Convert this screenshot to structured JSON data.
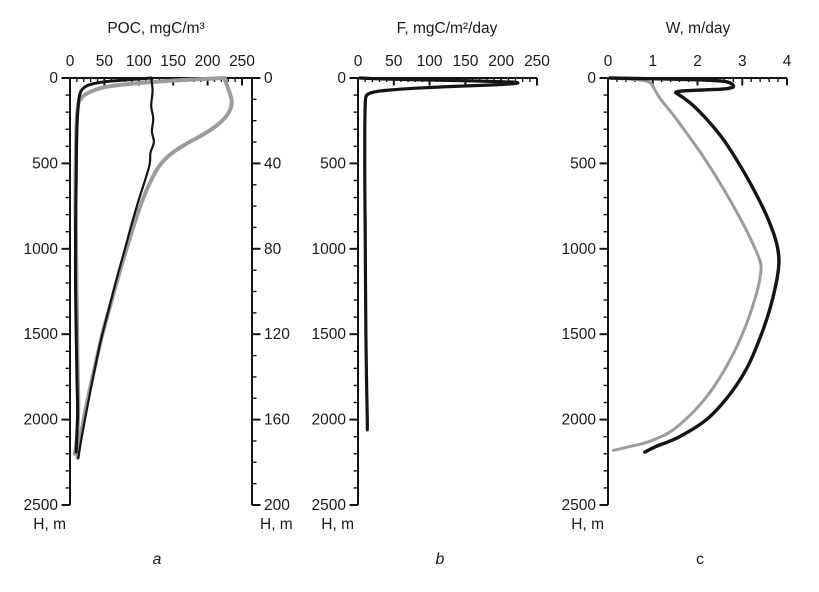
{
  "colors": {
    "line_black": "#141414",
    "line_gray": "#9c9c9c",
    "text": "#1a1a1a",
    "axis": "#141414"
  },
  "chart_data": [
    {
      "id": "a",
      "type": "line",
      "caption": "a",
      "title": "POC, mgC/m³",
      "x_axis": {
        "min": 0,
        "max": 250,
        "major_ticks": [
          0,
          50,
          100,
          150,
          200,
          250
        ],
        "minor_step": 10,
        "position": "top"
      },
      "y_axis": {
        "label": "H, m",
        "min": 0,
        "max": 2500,
        "major_ticks": [
          0,
          500,
          1000,
          1500,
          2000,
          2500
        ],
        "minor_step": 100,
        "position": "left",
        "direction": "down"
      },
      "y_axis_right": {
        "label": "H, m",
        "min": 0,
        "max": 200,
        "major_ticks": [
          0,
          40,
          80,
          120,
          160,
          200
        ],
        "minor_step": 10,
        "position": "right"
      },
      "series": [
        {
          "id": "poc-full-depth-gray",
          "name": "POC profile vs full depth scale 0-2500 m (gray)",
          "color": "line_gray",
          "width": 4,
          "scale": "left",
          "points": [
            [
              225,
              0
            ],
            [
              165,
              12
            ],
            [
              105,
              28
            ],
            [
              55,
              50
            ],
            [
              30,
              80
            ],
            [
              16,
              120
            ],
            [
              11,
              180
            ],
            [
              9,
              350
            ],
            [
              8,
              700
            ],
            [
              9,
              1050
            ],
            [
              10,
              1400
            ],
            [
              11,
              1700
            ],
            [
              12,
              1900
            ],
            [
              11,
              2050
            ],
            [
              9,
              2150
            ],
            [
              7,
              2200
            ]
          ]
        },
        {
          "id": "poc-upper-layer-gray",
          "name": "POC profile vs expanded upper-layer scale 0-200 m (gray)",
          "color": "line_gray",
          "width": 4,
          "scale": "right",
          "points": [
            [
              224,
              0
            ],
            [
              230,
              5
            ],
            [
              235,
              11
            ],
            [
              231,
              16
            ],
            [
              218,
              21
            ],
            [
              196,
              26
            ],
            [
              168,
              31
            ],
            [
              145,
              36
            ],
            [
              128,
              42
            ],
            [
              112,
              52
            ],
            [
              99,
              63
            ],
            [
              85,
              77
            ],
            [
              72,
              91
            ],
            [
              59,
              106
            ],
            [
              47,
              120
            ],
            [
              37,
              134
            ],
            [
              28,
              147
            ],
            [
              21,
              158
            ],
            [
              15,
              169
            ],
            [
              11,
              178
            ]
          ]
        },
        {
          "id": "poc-full-depth-black",
          "name": "POC profile vs full depth scale 0-2500 m (black)",
          "color": "line_black",
          "width": 3,
          "scale": "left",
          "points": [
            [
              118,
              0
            ],
            [
              85,
              10
            ],
            [
              50,
              22
            ],
            [
              28,
              40
            ],
            [
              18,
              65
            ],
            [
              14,
              100
            ],
            [
              12,
              160
            ],
            [
              10,
              300
            ],
            [
              9,
              600
            ],
            [
              8,
              900
            ],
            [
              8,
              1200
            ],
            [
              9,
              1500
            ],
            [
              10,
              1750
            ],
            [
              11,
              1950
            ],
            [
              10,
              2080
            ],
            [
              9,
              2190
            ]
          ]
        },
        {
          "id": "poc-upper-layer-black",
          "name": "POC profile vs expanded upper-layer scale 0-200 m (black)",
          "color": "line_black",
          "width": 2.2,
          "scale": "right",
          "points": [
            [
              118,
              0
            ],
            [
              120,
              6
            ],
            [
              118,
              13
            ],
            [
              121,
              19
            ],
            [
              119,
              25
            ],
            [
              122,
              30
            ],
            [
              117,
              35
            ],
            [
              116,
              40
            ],
            [
              110,
              47
            ],
            [
              100,
              57
            ],
            [
              90,
              68
            ],
            [
              79,
              81
            ],
            [
              67,
              95
            ],
            [
              55,
              110
            ],
            [
              44,
              124
            ],
            [
              35,
              138
            ],
            [
              27,
              151
            ],
            [
              20,
              163
            ],
            [
              15,
              172
            ],
            [
              12,
              178
            ]
          ]
        }
      ]
    },
    {
      "id": "b",
      "type": "line",
      "caption": "b",
      "title": "F, mgC/m²/day",
      "x_axis": {
        "min": 0,
        "max": 250,
        "major_ticks": [
          0,
          50,
          100,
          150,
          200,
          250
        ],
        "minor_step": 10,
        "position": "top"
      },
      "y_axis": {
        "label": "H, m",
        "min": 0,
        "max": 2500,
        "major_ticks": [
          0,
          500,
          1000,
          1500,
          2000,
          2500
        ],
        "minor_step": 100,
        "position": "left",
        "direction": "down"
      },
      "series": [
        {
          "id": "poc-flux-black",
          "name": "POC flux F",
          "color": "line_black",
          "width": 3.2,
          "scale": "left",
          "points": [
            [
              3,
              0
            ],
            [
              30,
              5
            ],
            [
              90,
              11
            ],
            [
              160,
              17
            ],
            [
              205,
              22
            ],
            [
              222,
              27
            ],
            [
              218,
              33
            ],
            [
              185,
              41
            ],
            [
              130,
              50
            ],
            [
              80,
              60
            ],
            [
              45,
              70
            ],
            [
              25,
              80
            ],
            [
              15,
              92
            ],
            [
              11,
              110
            ],
            [
              10,
              160
            ],
            [
              9.5,
              300
            ],
            [
              9.5,
              600
            ],
            [
              10,
              900
            ],
            [
              10.5,
              1200
            ],
            [
              11,
              1500
            ],
            [
              12,
              1800
            ],
            [
              13,
              2000
            ],
            [
              13,
              2060
            ]
          ]
        }
      ]
    },
    {
      "id": "c",
      "type": "line",
      "caption": "c",
      "title": "W, m/day",
      "x_axis": {
        "min": 0,
        "max": 4,
        "major_ticks": [
          0,
          1,
          2,
          3,
          4
        ],
        "minor_step": 0.2,
        "position": "top"
      },
      "y_axis": {
        "label": "H, m",
        "min": 0,
        "max": 2500,
        "major_ticks": [
          0,
          500,
          1000,
          1500,
          2000,
          2500
        ],
        "minor_step": 100,
        "position": "left",
        "direction": "down"
      },
      "series": [
        {
          "id": "settling-velocity-gray",
          "name": "Settling velocity W (gray)",
          "color": "line_gray",
          "width": 3,
          "scale": "left",
          "points": [
            [
              0.05,
              0
            ],
            [
              0.45,
              6
            ],
            [
              0.75,
              13
            ],
            [
              0.9,
              22
            ],
            [
              0.97,
              35
            ],
            [
              1.05,
              70
            ],
            [
              1.15,
              115
            ],
            [
              1.3,
              165
            ],
            [
              1.5,
              230
            ],
            [
              1.75,
              320
            ],
            [
              2.05,
              430
            ],
            [
              2.35,
              550
            ],
            [
              2.65,
              680
            ],
            [
              2.95,
              820
            ],
            [
              3.2,
              950
            ],
            [
              3.38,
              1060
            ],
            [
              3.42,
              1120
            ],
            [
              3.35,
              1230
            ],
            [
              3.15,
              1400
            ],
            [
              2.9,
              1560
            ],
            [
              2.6,
              1710
            ],
            [
              2.25,
              1850
            ],
            [
              1.85,
              1970
            ],
            [
              1.4,
              2070
            ],
            [
              0.9,
              2130
            ],
            [
              0.45,
              2160
            ],
            [
              0.12,
              2180
            ]
          ]
        },
        {
          "id": "settling-velocity-black",
          "name": "Settling velocity W (black)",
          "color": "line_black",
          "width": 3.4,
          "scale": "left",
          "points": [
            [
              0.05,
              0
            ],
            [
              0.9,
              4
            ],
            [
              1.8,
              9
            ],
            [
              2.4,
              15
            ],
            [
              2.65,
              22
            ],
            [
              2.75,
              32
            ],
            [
              2.8,
              45
            ],
            [
              2.78,
              55
            ],
            [
              2.6,
              64
            ],
            [
              2.1,
              70
            ],
            [
              1.65,
              76
            ],
            [
              1.52,
              83
            ],
            [
              1.55,
              93
            ],
            [
              1.68,
              115
            ],
            [
              1.9,
              160
            ],
            [
              2.2,
              240
            ],
            [
              2.55,
              350
            ],
            [
              2.9,
              490
            ],
            [
              3.25,
              650
            ],
            [
              3.55,
              810
            ],
            [
              3.75,
              950
            ],
            [
              3.82,
              1060
            ],
            [
              3.78,
              1170
            ],
            [
              3.62,
              1350
            ],
            [
              3.4,
              1520
            ],
            [
              3.1,
              1700
            ],
            [
              2.7,
              1860
            ],
            [
              2.2,
              2000
            ],
            [
              1.6,
              2100
            ],
            [
              1.05,
              2160
            ],
            [
              0.82,
              2190
            ]
          ]
        }
      ]
    }
  ]
}
